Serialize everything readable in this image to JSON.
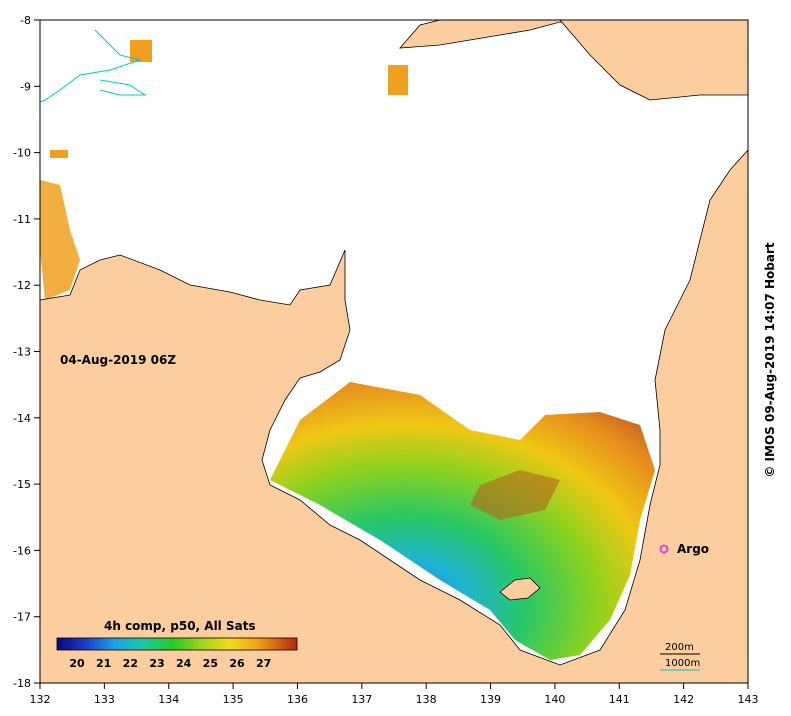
{
  "map": {
    "date_label": "04-Aug-2019 06Z",
    "colorbar_title": "4h comp, p50, All Sats",
    "colorbar_ticks": [
      "20",
      "21",
      "22",
      "23",
      "24",
      "25",
      "26",
      "27"
    ],
    "argo_label": "Argo",
    "depth_200_label": "200m",
    "depth_1000_label": "1000m",
    "credit": "© IMOS 09-Aug-2019 14:07 Hobart",
    "x_ticks": [
      "132",
      "133",
      "134",
      "135",
      "136",
      "137",
      "138",
      "139",
      "140",
      "141",
      "142",
      "143"
    ],
    "y_ticks": [
      "-8",
      "-9",
      "-10",
      "-11",
      "-12",
      "-13",
      "-14",
      "-15",
      "-16",
      "-17",
      "-18"
    ],
    "lon_range": [
      132,
      143
    ],
    "lat_range": [
      -18,
      -8
    ],
    "argo_position": {
      "lon": 141.7,
      "lat": -16.0
    },
    "colors": {
      "land": "#fbcd9f",
      "coast": "#000000",
      "argo_marker": "#e040e0",
      "isobath_200": "#000000",
      "isobath_1000": "#00c8d0",
      "cold": "#1e3cc8",
      "mid": "#22c33c",
      "warm": "#f0b414",
      "hot": "#c8641e"
    }
  }
}
